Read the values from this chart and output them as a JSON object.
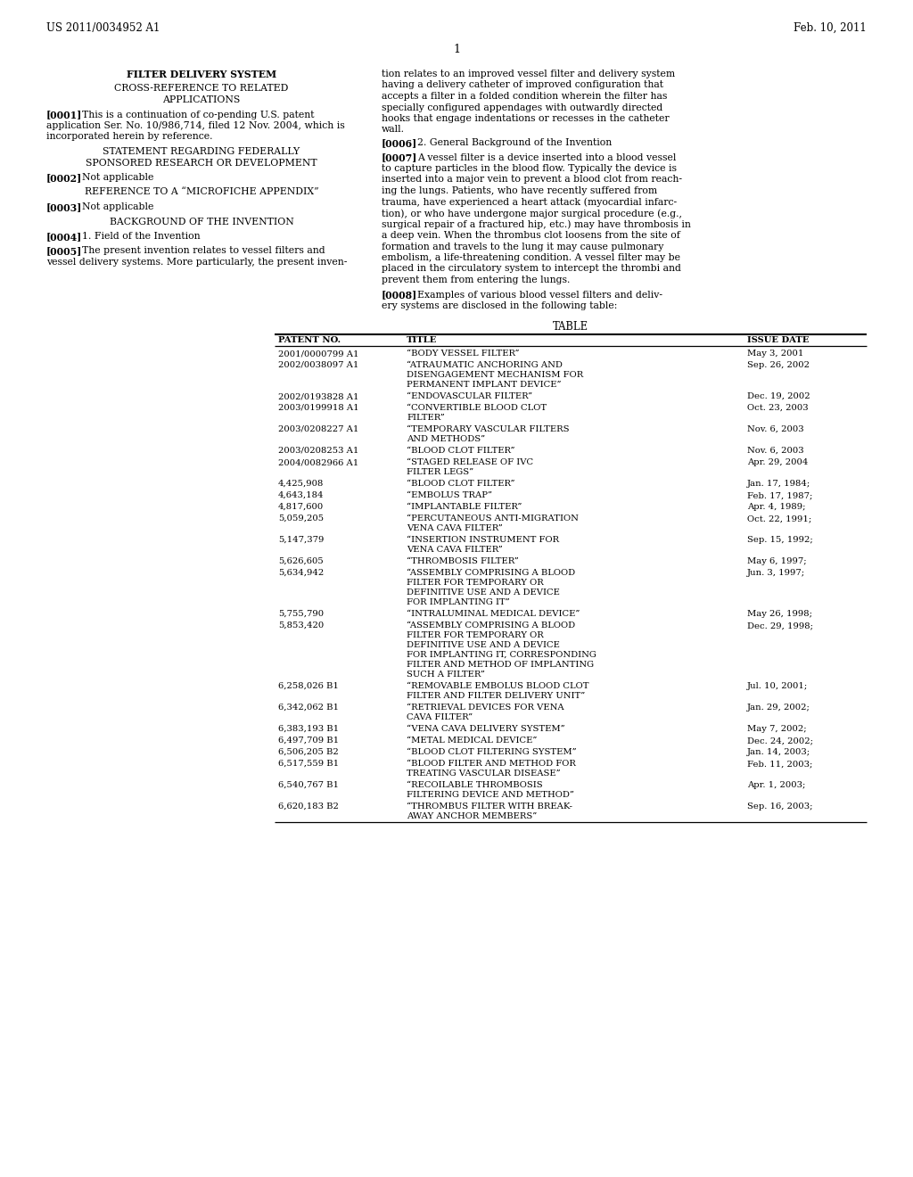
{
  "bg_color": "#ffffff",
  "header_left": "US 2011/0034952 A1",
  "header_right": "Feb. 10, 2011",
  "page_number": "1",
  "left_col_title": "FILTER DELIVERY SYSTEM",
  "left_sections": [
    {
      "type": "centered_heading",
      "text": "CROSS-REFERENCE TO RELATED\nAPPLICATIONS"
    },
    {
      "type": "paragraph",
      "tag": "[0001]",
      "text": "This is a continuation of co-pending U.S. patent\napplication Ser. No. 10/986,714, filed 12 Nov. 2004, which is\nincorporated herein by reference."
    },
    {
      "type": "centered_heading",
      "text": "STATEMENT REGARDING FEDERALLY\nSPONSORED RESEARCH OR DEVELOPMENT"
    },
    {
      "type": "paragraph",
      "tag": "[0002]",
      "text": "Not applicable"
    },
    {
      "type": "centered_heading",
      "text": "REFERENCE TO A “MICROFICHE APPENDIX”"
    },
    {
      "type": "paragraph",
      "tag": "[0003]",
      "text": "Not applicable"
    },
    {
      "type": "centered_heading",
      "text": "BACKGROUND OF THE INVENTION"
    },
    {
      "type": "paragraph",
      "tag": "[0004]",
      "text": "1. Field of the Invention"
    },
    {
      "type": "paragraph",
      "tag": "[0005]",
      "text": "The present invention relates to vessel filters and\nvessel delivery systems. More particularly, the present inven-"
    }
  ],
  "right_col_intro": "tion relates to an improved vessel filter and delivery system\nhaving a delivery catheter of improved configuration that\naccepts a filter in a folded condition wherein the filter has\nspecially configured appendages with outwardly directed\nhooks that engage indentations or recesses in the catheter\nwall.",
  "right_paragraphs": [
    {
      "tag": "[0006]",
      "tag_bold": true,
      "text": "2. General Background of the Invention",
      "text_bold": false
    },
    {
      "tag": "[0007]",
      "tag_bold": true,
      "text": "A vessel filter is a device inserted into a blood vessel\nto capture particles in the blood flow. Typically the device is\ninserted into a major vein to prevent a blood clot from reach-\ning the lungs. Patients, who have recently suffered from\ntrauma, have experienced a heart attack (myocardial infarc-\ntion), or who have undergone major surgical procedure (e.g.,\nsurgical repair of a fractured hip, etc.) may have thrombosis in\na deep vein. When the thrombus clot loosens from the site of\nformation and travels to the lung it may cause pulmonary\nembolism, a life-threatening condition. A vessel filter may be\nplaced in the circulatory system to intercept the thrombi and\nprevent them from entering the lungs.",
      "text_bold": false
    },
    {
      "tag": "[0008]",
      "tag_bold": true,
      "text": "Examples of various blood vessel filters and deliv-\nery systems are disclosed in the following table:",
      "text_bold": false
    }
  ],
  "table_title": "TABLE",
  "table_headers": [
    "PATENT NO.",
    "TITLE",
    "ISSUE DATE"
  ],
  "table_rows": [
    [
      "2001/0000799 A1",
      "“BODY VESSEL FILTER”",
      "May 3, 2001"
    ],
    [
      "2002/0038097 A1",
      "“ATRAUMATIC ANCHORING AND\nDISENGAGEMENT MECHANISM FOR\nPERMANENT IMPLANT DEVICE”",
      "Sep. 26, 2002"
    ],
    [
      "2002/0193828 A1",
      "“ENDOVASCULAR FILTER”",
      "Dec. 19, 2002"
    ],
    [
      "2003/0199918 A1",
      "“CONVERTIBLE BLOOD CLOT\nFILTER”",
      "Oct. 23, 2003"
    ],
    [
      "2003/0208227 A1",
      "“TEMPORARY VASCULAR FILTERS\nAND METHODS”",
      "Nov. 6, 2003"
    ],
    [
      "2003/0208253 A1",
      "“BLOOD CLOT FILTER”",
      "Nov. 6, 2003"
    ],
    [
      "2004/0082966 A1",
      "“STAGED RELEASE OF IVC\nFILTER LEGS”",
      "Apr. 29, 2004"
    ],
    [
      "4,425,908",
      "“BLOOD CLOT FILTER”",
      "Jan. 17, 1984;"
    ],
    [
      "4,643,184",
      "“EMBOLUS TRAP”",
      "Feb. 17, 1987;"
    ],
    [
      "4,817,600",
      "“IMPLANTABLE FILTER”",
      "Apr. 4, 1989;"
    ],
    [
      "5,059,205",
      "“PERCUTANEOUS ANTI-MIGRATION\nVENA CAVA FILTER”",
      "Oct. 22, 1991;"
    ],
    [
      "5,147,379",
      "“INSERTION INSTRUMENT FOR\nVENA CAVA FILTER”",
      "Sep. 15, 1992;"
    ],
    [
      "5,626,605",
      "“THROMBOSIS FILTER”",
      "May 6, 1997;"
    ],
    [
      "5,634,942",
      "“ASSEMBLY COMPRISING A BLOOD\nFILTER FOR TEMPORARY OR\nDEFINITIVE USE AND A DEVICE\nFOR IMPLANTING IT”",
      "Jun. 3, 1997;"
    ],
    [
      "5,755,790",
      "“INTRALUMINAL MEDICAL DEVICE”",
      "May 26, 1998;"
    ],
    [
      "5,853,420",
      "“ASSEMBLY COMPRISING A BLOOD\nFILTER FOR TEMPORARY OR\nDEFINITIVE USE AND A DEVICE\nFOR IMPLANTING IT, CORRESPONDING\nFILTER AND METHOD OF IMPLANTING\nSUCH A FILTER”",
      "Dec. 29, 1998;"
    ],
    [
      "6,258,026 B1",
      "“REMOVABLE EMBOLUS BLOOD CLOT\nFILTER AND FILTER DELIVERY UNIT”",
      "Jul. 10, 2001;"
    ],
    [
      "6,342,062 B1",
      "“RETRIEVAL DEVICES FOR VENA\nCAVA FILTER”",
      "Jan. 29, 2002;"
    ],
    [
      "6,383,193 B1",
      "“VENA CAVA DELIVERY SYSTEM”",
      "May 7, 2002;"
    ],
    [
      "6,497,709 B1",
      "“METAL MEDICAL DEVICE”",
      "Dec. 24, 2002;"
    ],
    [
      "6,506,205 B2",
      "“BLOOD CLOT FILTERING SYSTEM”",
      "Jan. 14, 2003;"
    ],
    [
      "6,517,559 B1",
      "“BLOOD FILTER AND METHOD FOR\nTREATING VASCULAR DISEASE”",
      "Feb. 11, 2003;"
    ],
    [
      "6,540,767 B1",
      "“RECOILABLE THROMBOSIS\nFILTERING DEVICE AND METHOD”",
      "Apr. 1, 2003;"
    ],
    [
      "6,620,183 B2",
      "“THROMBUS FILTER WITH BREAK-\nAWAY ANCHOR MEMBERS”",
      "Sep. 16, 2003;"
    ]
  ]
}
